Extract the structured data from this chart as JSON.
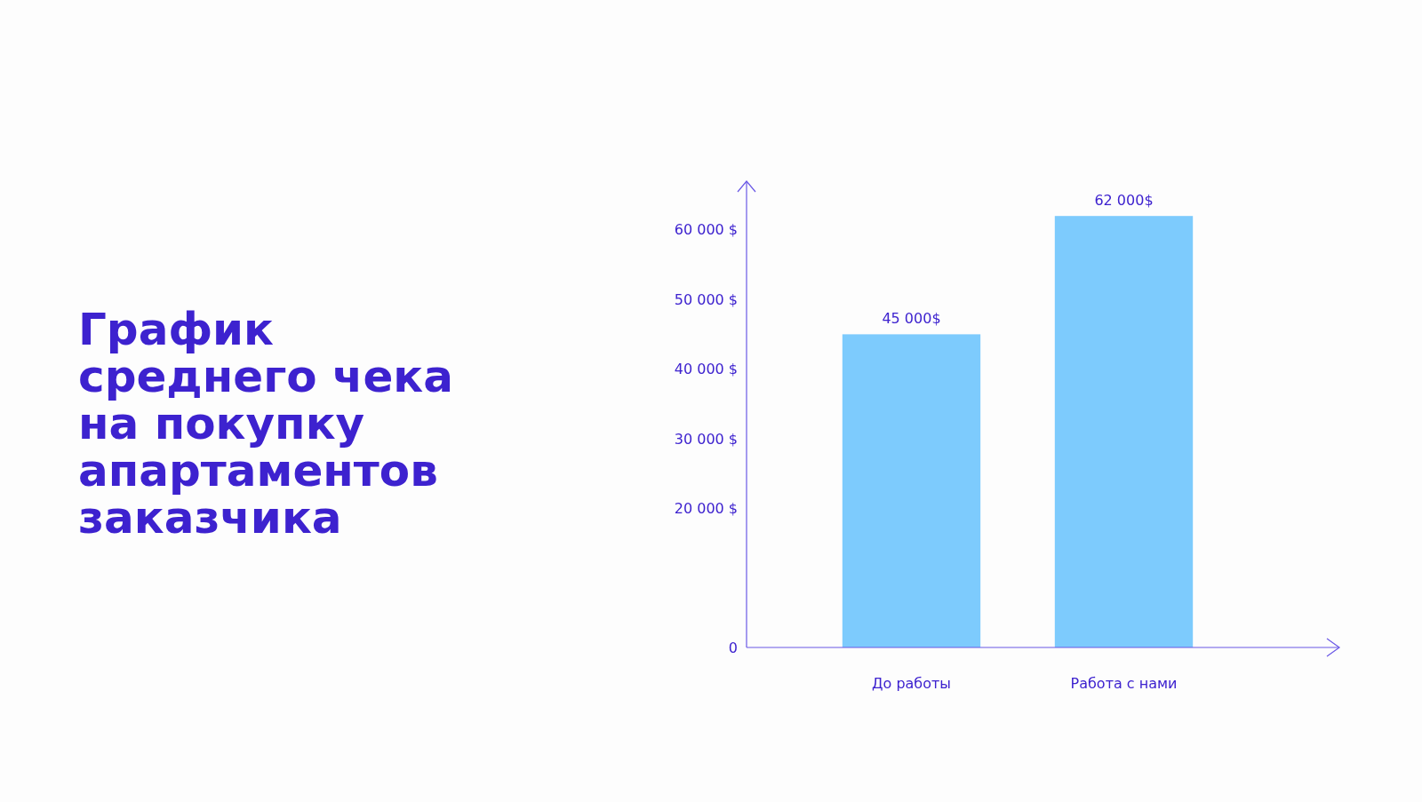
{
  "chart_data": {
    "type": "bar",
    "title": "График\nсреднего чека\nна покупку\nапартаментов\nзаказчика",
    "categories": [
      "До работы",
      "Работа с нами"
    ],
    "values": [
      45000,
      62000
    ],
    "color": "#7dcbfd",
    "value_labels": [
      "45 000$",
      "62 000$"
    ],
    "ylim": [
      0,
      67000
    ],
    "yticks": [
      0,
      {
        "value": 20000,
        "label": "20 000 $"
      },
      {
        "value": 30000,
        "label": "30 000 $"
      },
      {
        "value": 40000,
        "label": "40 000 $"
      },
      {
        "value": 50000,
        "label": "50 000 $"
      },
      {
        "value": 60000,
        "label": "60 000 $"
      }
    ]
  }
}
